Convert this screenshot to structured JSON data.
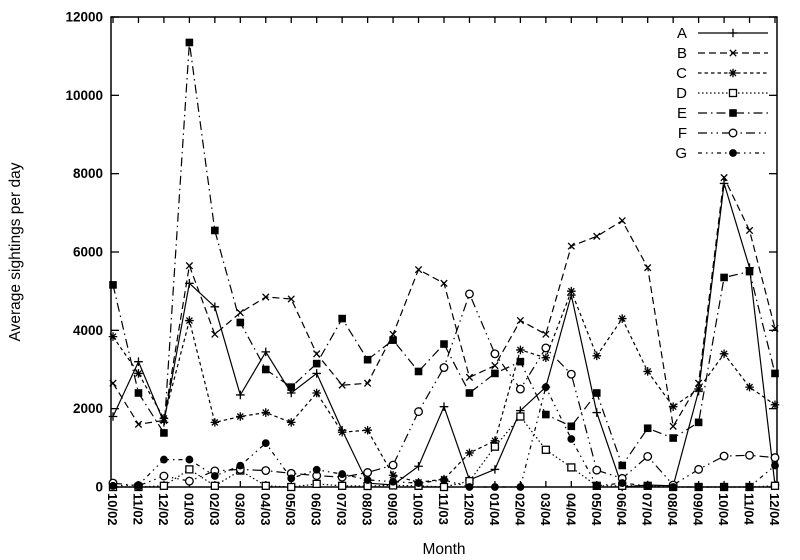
{
  "chart_data": {
    "type": "line",
    "title": "",
    "xlabel": "Month",
    "ylabel": "Average sightings per day",
    "ylim": [
      0,
      12000
    ],
    "yticks": [
      0,
      2000,
      4000,
      6000,
      8000,
      10000,
      12000
    ],
    "grid": false,
    "legend_position": "top-right-inside",
    "foreground_color": "#000000",
    "background_color": "#ffffff",
    "categories": [
      "10/02",
      "11/02",
      "12/02",
      "01/03",
      "02/03",
      "03/03",
      "04/03",
      "05/03",
      "06/03",
      "07/03",
      "08/03",
      "09/03",
      "10/03",
      "11/03",
      "12/03",
      "01/04",
      "02/04",
      "03/04",
      "04/04",
      "05/04",
      "06/04",
      "07/04",
      "08/04",
      "09/04",
      "10/04",
      "11/04",
      "12/04"
    ],
    "series": [
      {
        "name": "A",
        "marker": "plus",
        "line": "solid",
        "values": [
          1800,
          3200,
          1650,
          5200,
          4600,
          2350,
          3450,
          2400,
          2900,
          1450,
          100,
          50,
          530,
          2050,
          180,
          450,
          1950,
          2550,
          4900,
          1900,
          0,
          50,
          30,
          2450,
          7750,
          5600,
          50
        ]
      },
      {
        "name": "B",
        "marker": "cross",
        "line": "dash",
        "values": [
          2650,
          1600,
          1700,
          5650,
          3900,
          4450,
          4850,
          4800,
          3400,
          2600,
          2650,
          3900,
          5550,
          5200,
          2800,
          3100,
          4250,
          3900,
          6150,
          6400,
          6800,
          5600,
          1550,
          2650,
          7900,
          6550,
          4050
        ]
      },
      {
        "name": "C",
        "marker": "asterisk",
        "line": "short-dash",
        "values": [
          3840,
          2900,
          1750,
          4250,
          1650,
          1800,
          1900,
          1650,
          2400,
          1400,
          1450,
          300,
          120,
          200,
          870,
          1180,
          3500,
          3300,
          5000,
          3350,
          4300,
          2950,
          2050,
          2500,
          3400,
          2550,
          2100
        ]
      },
      {
        "name": "D",
        "marker": "open-square",
        "line": "dot",
        "values": [
          0,
          0,
          30,
          450,
          30,
          420,
          30,
          0,
          80,
          30,
          25,
          40,
          30,
          0,
          150,
          1030,
          1800,
          950,
          500,
          30,
          30,
          30,
          0,
          0,
          0,
          0,
          30
        ]
      },
      {
        "name": "E",
        "marker": "filled-square",
        "line": "dash-dot",
        "values": [
          5160,
          2400,
          1380,
          11350,
          6550,
          4200,
          3000,
          2550,
          3150,
          4300,
          3250,
          3750,
          2950,
          3650,
          2400,
          2900,
          3200,
          1850,
          1550,
          2400,
          550,
          1500,
          1250,
          1650,
          5350,
          5500,
          2900
        ]
      },
      {
        "name": "F",
        "marker": "open-circle",
        "line": "dash-dot-dot",
        "values": [
          100,
          30,
          280,
          150,
          410,
          450,
          420,
          350,
          290,
          250,
          370,
          560,
          1925,
          3050,
          4930,
          3400,
          2500,
          3550,
          2880,
          430,
          220,
          780,
          50,
          450,
          790,
          810,
          750
        ]
      },
      {
        "name": "G",
        "marker": "filled-circle",
        "line": "dot-dot-dash",
        "values": [
          30,
          50,
          700,
          700,
          280,
          545,
          1120,
          220,
          440,
          330,
          180,
          135,
          100,
          180,
          0,
          0,
          0,
          2550,
          1225,
          30,
          100,
          30,
          0,
          0,
          0,
          0,
          550
        ]
      }
    ]
  }
}
